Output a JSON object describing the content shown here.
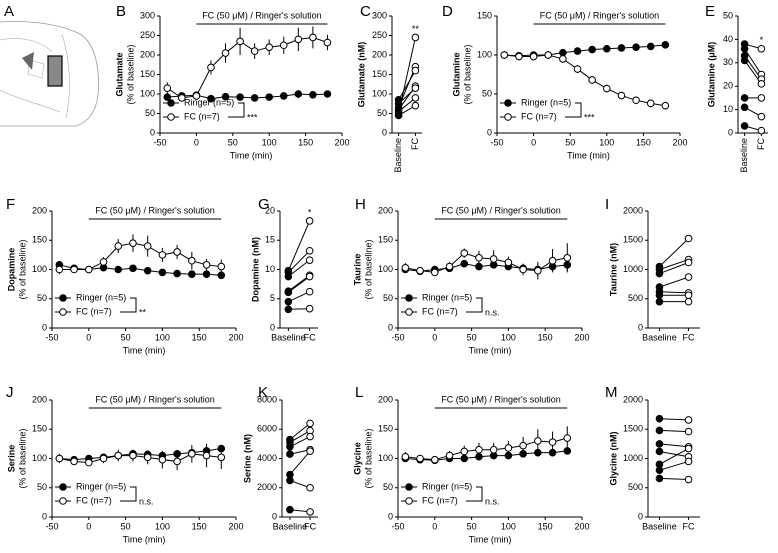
{
  "chart_data": [
    {
      "type": "image",
      "panel": "A"
    },
    {
      "type": "line",
      "panel": "B",
      "ylabel": [
        "Glutamate",
        "(% of baseline)"
      ],
      "xlabel": "Time (min)",
      "x": [
        -40,
        -20,
        0,
        20,
        40,
        60,
        80,
        100,
        120,
        140,
        160,
        180
      ],
      "xlim": [
        -50,
        200
      ],
      "xticks": [
        -50,
        0,
        50,
        100,
        150,
        200
      ],
      "ylim": [
        0,
        300
      ],
      "yticks": [
        0,
        50,
        100,
        150,
        200,
        250,
        300
      ],
      "treatment": "FC (50 μM) / Ringer's solution",
      "treatment_span": [
        0,
        180
      ],
      "series": [
        {
          "name": "Ringer (n=5)",
          "color": "#000000",
          "fill": "#000000",
          "values": [
            92,
            95,
            97,
            88,
            93,
            92,
            90,
            92,
            95,
            100,
            98,
            100
          ],
          "errors": [
            3,
            3,
            3,
            5,
            5,
            5,
            5,
            5,
            5,
            10,
            5,
            5
          ]
        },
        {
          "name": "FC (n=7)",
          "color": "#000000",
          "fill": "#ffffff",
          "values": [
            115,
            90,
            95,
            168,
            205,
            235,
            210,
            220,
            225,
            240,
            245,
            232
          ],
          "errors": [
            15,
            8,
            10,
            18,
            25,
            35,
            20,
            20,
            22,
            30,
            28,
            20
          ]
        }
      ],
      "significance": "***"
    },
    {
      "type": "paired",
      "panel": "C",
      "ylabel": "Glutamate (nM)",
      "categories": [
        "Baseline",
        "FC"
      ],
      "ylim": [
        0,
        300
      ],
      "yticks": [
        0,
        50,
        100,
        150,
        200,
        250,
        300
      ],
      "marker_fills": [
        "#000000",
        "#ffffff"
      ],
      "pairs": [
        [
          50,
          245
        ],
        [
          65,
          170
        ],
        [
          85,
          160
        ],
        [
          60,
          120
        ],
        [
          75,
          115
        ],
        [
          55,
          90
        ],
        [
          45,
          70
        ]
      ],
      "annotation": "**"
    },
    {
      "type": "line",
      "panel": "D",
      "ylabel": [
        "Glutamine",
        "(% of baseline)"
      ],
      "xlabel": "Time (min)",
      "x": [
        -40,
        -20,
        0,
        20,
        40,
        60,
        80,
        100,
        120,
        140,
        160,
        180
      ],
      "xlim": [
        -50,
        200
      ],
      "xticks": [
        -50,
        0,
        50,
        100,
        150,
        200
      ],
      "ylim": [
        0,
        150
      ],
      "yticks": [
        0,
        50,
        100,
        150
      ],
      "treatment": "FC (50 μM) / Ringer's solution",
      "treatment_span": [
        0,
        180
      ],
      "series": [
        {
          "name": "Ringer (n=5)",
          "color": "#000000",
          "fill": "#000000",
          "values": [
            100,
            99,
            100,
            100,
            103,
            105,
            107,
            108,
            109,
            110,
            111,
            113
          ],
          "errors": [
            3,
            3,
            3,
            3,
            3,
            3,
            3,
            3,
            3,
            3,
            3,
            3
          ]
        },
        {
          "name": "FC (n=7)",
          "color": "#000000",
          "fill": "#ffffff",
          "values": [
            100,
            98,
            98,
            100,
            95,
            82,
            68,
            57,
            48,
            42,
            38,
            35
          ],
          "errors": [
            5,
            5,
            5,
            5,
            5,
            5,
            5,
            5,
            5,
            5,
            5,
            5
          ]
        }
      ],
      "significance": "***"
    },
    {
      "type": "paired",
      "panel": "E",
      "ylabel": "Glutamine (μM)",
      "categories": [
        "Baseline",
        "FC"
      ],
      "ylim": [
        0,
        50
      ],
      "yticks": [
        0,
        10,
        20,
        30,
        40,
        50
      ],
      "marker_fills": [
        "#000000",
        "#ffffff"
      ],
      "pairs": [
        [
          38,
          36
        ],
        [
          36,
          25
        ],
        [
          33,
          23
        ],
        [
          31,
          21
        ],
        [
          15,
          15
        ],
        [
          11,
          7
        ],
        [
          3,
          1
        ]
      ],
      "annotation": "*"
    },
    {
      "type": "line",
      "panel": "F",
      "ylabel": [
        "Dopamine",
        "(% of baseline)"
      ],
      "xlabel": "Time (min)",
      "x": [
        -40,
        -20,
        0,
        20,
        40,
        60,
        80,
        100,
        120,
        140,
        160,
        180
      ],
      "xlim": [
        -50,
        200
      ],
      "xticks": [
        -50,
        0,
        50,
        100,
        150,
        200
      ],
      "ylim": [
        0,
        200
      ],
      "yticks": [
        0,
        50,
        100,
        150,
        200
      ],
      "treatment": "FC (50 μM) / Ringer's solution",
      "treatment_span": [
        0,
        180
      ],
      "series": [
        {
          "name": "Ringer (n=5)",
          "color": "#000000",
          "fill": "#000000",
          "values": [
            108,
            102,
            100,
            103,
            100,
            102,
            98,
            95,
            93,
            92,
            92,
            90
          ],
          "errors": [
            4,
            4,
            4,
            4,
            4,
            4,
            4,
            4,
            4,
            4,
            4,
            4
          ]
        },
        {
          "name": "FC (n=7)",
          "color": "#000000",
          "fill": "#ffffff",
          "values": [
            100,
            100,
            100,
            113,
            140,
            145,
            140,
            125,
            130,
            115,
            108,
            105
          ],
          "errors": [
            8,
            5,
            5,
            8,
            12,
            15,
            18,
            12,
            12,
            15,
            10,
            12
          ]
        }
      ],
      "significance": "**"
    },
    {
      "type": "paired",
      "panel": "G",
      "ylabel": "Dopamine (nM)",
      "categories": [
        "Baseline",
        "FC"
      ],
      "ylim": [
        0,
        20
      ],
      "yticks": [
        0,
        5,
        10,
        15,
        20
      ],
      "marker_fills": [
        "#000000",
        "#ffffff"
      ],
      "pairs": [
        [
          9.8,
          18.3
        ],
        [
          9.5,
          13.2
        ],
        [
          8.8,
          11.6
        ],
        [
          6.3,
          9.0
        ],
        [
          6.1,
          8.8
        ],
        [
          4.5,
          6.2
        ],
        [
          3.2,
          3.3
        ]
      ],
      "annotation": "*"
    },
    {
      "type": "line",
      "panel": "H",
      "ylabel": [
        "Taurine",
        "(% of baseline)"
      ],
      "xlabel": "Time (min)",
      "x": [
        -40,
        -20,
        0,
        20,
        40,
        60,
        80,
        100,
        120,
        140,
        160,
        180
      ],
      "xlim": [
        -50,
        200
      ],
      "xticks": [
        -50,
        0,
        50,
        100,
        150,
        200
      ],
      "ylim": [
        0,
        200
      ],
      "yticks": [
        0,
        50,
        100,
        150,
        200
      ],
      "treatment": "FC (50 μM) / Ringer's solution",
      "treatment_span": [
        0,
        180
      ],
      "series": [
        {
          "name": "Ringer (n=5)",
          "color": "#000000",
          "fill": "#000000",
          "values": [
            100,
            97,
            100,
            102,
            110,
            105,
            108,
            105,
            102,
            100,
            105,
            108
          ],
          "errors": [
            5,
            5,
            5,
            5,
            5,
            5,
            5,
            5,
            5,
            5,
            8,
            10
          ]
        },
        {
          "name": "FC (n=7)",
          "color": "#000000",
          "fill": "#ffffff",
          "values": [
            103,
            98,
            95,
            105,
            128,
            120,
            118,
            112,
            100,
            98,
            115,
            120
          ],
          "errors": [
            8,
            5,
            5,
            8,
            8,
            12,
            15,
            10,
            10,
            15,
            20,
            25
          ]
        }
      ],
      "significance": "n.s."
    },
    {
      "type": "paired",
      "panel": "I",
      "ylabel": "Taurine (nM)",
      "categories": [
        "Baseline",
        "FC"
      ],
      "ylim": [
        0,
        2000
      ],
      "yticks": [
        0,
        500,
        1000,
        1500,
        2000
      ],
      "marker_fills": [
        "#000000",
        "#ffffff"
      ],
      "pairs": [
        [
          1050,
          1530
        ],
        [
          1000,
          1170
        ],
        [
          930,
          1120
        ],
        [
          700,
          870
        ],
        [
          620,
          600
        ],
        [
          560,
          560
        ],
        [
          450,
          450
        ]
      ]
    },
    {
      "type": "line",
      "panel": "J",
      "ylabel": [
        "Serine",
        "(% of baseline)"
      ],
      "xlabel": "Time (min)",
      "x": [
        -40,
        -20,
        0,
        20,
        40,
        60,
        80,
        100,
        120,
        140,
        160,
        180
      ],
      "xlim": [
        -50,
        200
      ],
      "xticks": [
        -50,
        0,
        50,
        100,
        150,
        200
      ],
      "ylim": [
        0,
        200
      ],
      "yticks": [
        0,
        50,
        100,
        150,
        200
      ],
      "treatment": "FC (50 μM) / Ringer's solution",
      "treatment_span": [
        0,
        180
      ],
      "series": [
        {
          "name": "Ringer (n=5)",
          "color": "#000000",
          "fill": "#000000",
          "values": [
            100,
            98,
            100,
            102,
            105,
            108,
            107,
            105,
            108,
            110,
            113,
            117
          ],
          "errors": [
            5,
            5,
            5,
            5,
            5,
            5,
            5,
            5,
            5,
            6,
            6,
            6
          ]
        },
        {
          "name": "FC (n=7)",
          "color": "#000000",
          "fill": "#ffffff",
          "values": [
            100,
            95,
            93,
            100,
            105,
            105,
            102,
            98,
            95,
            108,
            105,
            102
          ],
          "errors": [
            8,
            5,
            5,
            8,
            10,
            10,
            12,
            15,
            15,
            15,
            20,
            20
          ]
        }
      ],
      "significance": "n.s."
    },
    {
      "type": "paired",
      "panel": "K",
      "ylabel": "Serine (nM)",
      "categories": [
        "Baseline",
        "FC"
      ],
      "ylim": [
        0,
        8000
      ],
      "yticks": [
        0,
        2000,
        4000,
        6000,
        8000
      ],
      "marker_fills": [
        "#000000",
        "#ffffff"
      ],
      "pairs": [
        [
          5300,
          6400
        ],
        [
          5100,
          5900
        ],
        [
          4800,
          5500
        ],
        [
          4300,
          4600
        ],
        [
          2900,
          4500
        ],
        [
          2500,
          2000
        ],
        [
          500,
          350
        ]
      ]
    },
    {
      "type": "line",
      "panel": "L",
      "ylabel": [
        "Glycine",
        "(% of baseline)"
      ],
      "xlabel": "Time (min)",
      "x": [
        -40,
        -20,
        0,
        20,
        40,
        60,
        80,
        100,
        120,
        140,
        160,
        180
      ],
      "xlim": [
        -50,
        200
      ],
      "xticks": [
        -50,
        0,
        50,
        100,
        150,
        200
      ],
      "ylim": [
        0,
        200
      ],
      "yticks": [
        0,
        50,
        100,
        150,
        200
      ],
      "treatment": "FC (50 μM) / Ringer's solution",
      "treatment_span": [
        0,
        180
      ],
      "series": [
        {
          "name": "Ringer (n=5)",
          "color": "#000000",
          "fill": "#000000",
          "values": [
            100,
            98,
            97,
            100,
            100,
            103,
            105,
            105,
            108,
            110,
            110,
            113
          ],
          "errors": [
            6,
            6,
            6,
            6,
            6,
            6,
            6,
            6,
            6,
            6,
            6,
            6
          ]
        },
        {
          "name": "FC (n=7)",
          "color": "#000000",
          "fill": "#ffffff",
          "values": [
            103,
            100,
            98,
            105,
            112,
            115,
            115,
            118,
            122,
            130,
            128,
            135
          ],
          "errors": [
            8,
            5,
            5,
            8,
            10,
            12,
            12,
            12,
            15,
            20,
            18,
            20
          ]
        }
      ],
      "significance": "n.s."
    },
    {
      "type": "paired",
      "panel": "M",
      "ylabel": "Glycine (nM)",
      "categories": [
        "Baseline",
        "FC"
      ],
      "ylim": [
        0,
        2000
      ],
      "yticks": [
        0,
        500,
        1000,
        1500,
        2000
      ],
      "marker_fills": [
        "#000000",
        "#ffffff"
      ],
      "pairs": [
        [
          1680,
          1660
        ],
        [
          1480,
          1460
        ],
        [
          1250,
          1200
        ],
        [
          1120,
          1030
        ],
        [
          900,
          1170
        ],
        [
          800,
          950
        ],
        [
          660,
          640
        ]
      ]
    }
  ]
}
